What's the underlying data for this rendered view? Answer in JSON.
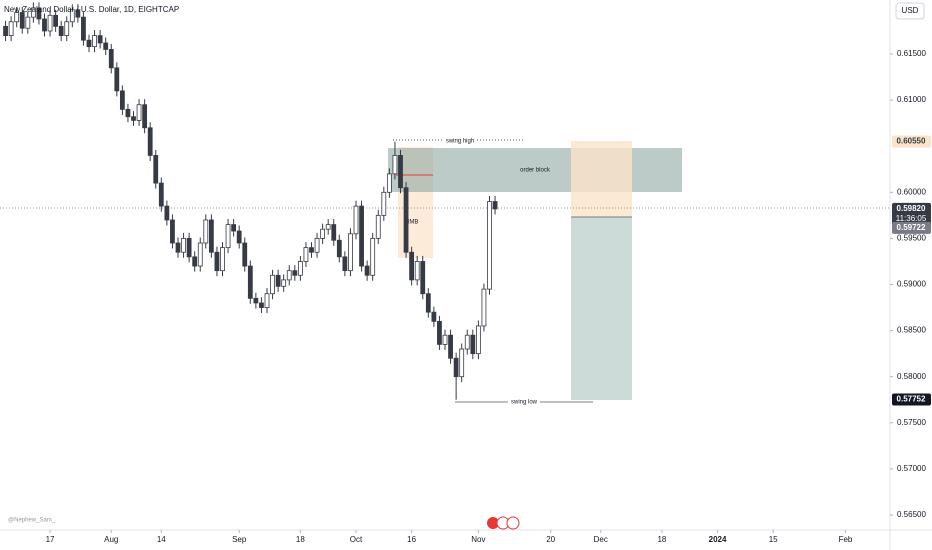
{
  "chart_data": {
    "type": "candlestick",
    "title": "New Zealand Dollar / U.S. Dollar, 1D, EIGHTCAP",
    "currency": "USD",
    "x": [
      -8,
      -7,
      -6,
      -5,
      -4,
      -3,
      -2,
      -1,
      0,
      1,
      2,
      3,
      4,
      5,
      6,
      7,
      8,
      9,
      10,
      11,
      12,
      13,
      14,
      15,
      16,
      17,
      18,
      19,
      20,
      21,
      22,
      23,
      24,
      25,
      26,
      27,
      28,
      29,
      30,
      31,
      32,
      33,
      34,
      35,
      36,
      37,
      38,
      39,
      40,
      41,
      42,
      43,
      44,
      45,
      46,
      47,
      48,
      49,
      50,
      51,
      52,
      53,
      54,
      55,
      56,
      57,
      58,
      59,
      60,
      61,
      62,
      63,
      64,
      65,
      66,
      67,
      68,
      69,
      70,
      71,
      72,
      73,
      74,
      75,
      76,
      77,
      78,
      79,
      80
    ],
    "open": [
      0.618,
      0.617,
      0.6185,
      0.6195,
      0.6178,
      0.619,
      0.62,
      0.6188,
      0.6175,
      0.6192,
      0.618,
      0.617,
      0.6185,
      0.6198,
      0.619,
      0.6165,
      0.6158,
      0.617,
      0.6162,
      0.6155,
      0.6135,
      0.611,
      0.609,
      0.6082,
      0.6078,
      0.6095,
      0.607,
      0.604,
      0.601,
      0.5985,
      0.597,
      0.5945,
      0.5935,
      0.595,
      0.593,
      0.592,
      0.5945,
      0.597,
      0.5935,
      0.5915,
      0.594,
      0.5965,
      0.5958,
      0.5945,
      0.592,
      0.5885,
      0.588,
      0.5875,
      0.589,
      0.591,
      0.5898,
      0.5905,
      0.5915,
      0.591,
      0.5925,
      0.594,
      0.5935,
      0.595,
      0.596,
      0.5965,
      0.5948,
      0.593,
      0.5915,
      0.5955,
      0.5985,
      0.592,
      0.591,
      0.595,
      0.5975,
      0.6,
      0.602,
      0.604,
      0.6005,
      0.5935,
      0.5905,
      0.5925,
      0.589,
      0.587,
      0.586,
      0.5835,
      0.5845,
      0.582,
      0.58,
      0.583,
      0.5845,
      0.5825,
      0.5855,
      0.5895,
      0.599
    ],
    "high": [
      0.6186,
      0.6191,
      0.6201,
      0.6201,
      0.6196,
      0.6206,
      0.6206,
      0.6194,
      0.6198,
      0.6198,
      0.6186,
      0.6191,
      0.6204,
      0.6204,
      0.6196,
      0.6171,
      0.6176,
      0.6176,
      0.6168,
      0.6161,
      0.6141,
      0.6116,
      0.6096,
      0.6088,
      0.6101,
      0.6101,
      0.6076,
      0.6046,
      0.6016,
      0.5991,
      0.5976,
      0.5951,
      0.5956,
      0.5956,
      0.5936,
      0.5951,
      0.5976,
      0.5976,
      0.5941,
      0.5946,
      0.5971,
      0.5971,
      0.5964,
      0.5951,
      0.5926,
      0.5891,
      0.5886,
      0.5896,
      0.5916,
      0.5916,
      0.5911,
      0.5921,
      0.5921,
      0.5931,
      0.5946,
      0.5946,
      0.5956,
      0.5966,
      0.5971,
      0.5971,
      0.5954,
      0.5936,
      0.5961,
      0.5991,
      0.5991,
      0.5926,
      0.5956,
      0.5981,
      0.6006,
      0.6026,
      0.6055,
      0.6046,
      0.6011,
      0.5941,
      0.5931,
      0.5931,
      0.5896,
      0.5876,
      0.5866,
      0.5851,
      0.5851,
      0.5826,
      0.5836,
      0.5851,
      0.5851,
      0.5861,
      0.5901,
      0.5996,
      0.5996
    ],
    "low": [
      0.6164,
      0.6164,
      0.6179,
      0.6172,
      0.6172,
      0.6184,
      0.6182,
      0.6169,
      0.6169,
      0.6174,
      0.6164,
      0.6164,
      0.6179,
      0.6184,
      0.6159,
      0.6152,
      0.6152,
      0.6156,
      0.6149,
      0.6129,
      0.6104,
      0.6084,
      0.6076,
      0.6072,
      0.6072,
      0.6064,
      0.6034,
      0.6004,
      0.5979,
      0.5964,
      0.5939,
      0.5929,
      0.5929,
      0.5924,
      0.5914,
      0.5914,
      0.5939,
      0.5929,
      0.5909,
      0.5909,
      0.5934,
      0.5952,
      0.5939,
      0.5914,
      0.5879,
      0.5874,
      0.5869,
      0.5869,
      0.5884,
      0.5892,
      0.5892,
      0.5899,
      0.5904,
      0.5904,
      0.5919,
      0.5929,
      0.5929,
      0.5944,
      0.5954,
      0.5942,
      0.5924,
      0.5909,
      0.5909,
      0.5949,
      0.5914,
      0.5904,
      0.5904,
      0.5944,
      0.5969,
      0.5994,
      0.6014,
      0.5999,
      0.5929,
      0.5899,
      0.5899,
      0.5884,
      0.5864,
      0.5854,
      0.5829,
      0.5829,
      0.5814,
      0.5775,
      0.5794,
      0.5824,
      0.5819,
      0.5819,
      0.5849,
      0.5889,
      0.5976
    ],
    "close": [
      0.617,
      0.6185,
      0.6195,
      0.6178,
      0.619,
      0.62,
      0.6188,
      0.6175,
      0.6192,
      0.618,
      0.617,
      0.6185,
      0.6198,
      0.619,
      0.6165,
      0.6158,
      0.617,
      0.6162,
      0.6155,
      0.6135,
      0.611,
      0.609,
      0.6082,
      0.6078,
      0.6095,
      0.607,
      0.604,
      0.601,
      0.5985,
      0.597,
      0.5945,
      0.5935,
      0.595,
      0.593,
      0.592,
      0.5945,
      0.597,
      0.5935,
      0.5915,
      0.594,
      0.5965,
      0.5958,
      0.5945,
      0.592,
      0.5885,
      0.588,
      0.5875,
      0.589,
      0.591,
      0.5898,
      0.5905,
      0.5915,
      0.591,
      0.5925,
      0.594,
      0.5935,
      0.595,
      0.596,
      0.5965,
      0.5948,
      0.593,
      0.5915,
      0.5955,
      0.5985,
      0.592,
      0.591,
      0.595,
      0.5975,
      0.6,
      0.602,
      0.604,
      0.6005,
      0.5935,
      0.5905,
      0.5925,
      0.589,
      0.587,
      0.586,
      0.5835,
      0.5845,
      0.582,
      0.58,
      0.583,
      0.5845,
      0.5825,
      0.5855,
      0.5895,
      0.599,
      0.5982
    ],
    "up_color": "#ffffff",
    "down_color": "#363a45",
    "edge_color": "#363a45",
    "xlim": [
      -9,
      151
    ],
    "xticks": [
      {
        "value": 0,
        "label": "17"
      },
      {
        "value": 11,
        "label": "Aug"
      },
      {
        "value": 20,
        "label": "14"
      },
      {
        "value": 34,
        "label": "Sep"
      },
      {
        "value": 45,
        "label": "18"
      },
      {
        "value": 55,
        "label": "Oct"
      },
      {
        "value": 65,
        "label": "16"
      },
      {
        "value": 77,
        "label": "Nov"
      },
      {
        "value": 90,
        "label": "20"
      },
      {
        "value": 99,
        "label": "Dec"
      },
      {
        "value": 110,
        "label": "18"
      },
      {
        "value": 120,
        "label": "2024"
      },
      {
        "value": 130,
        "label": "15"
      },
      {
        "value": 143,
        "label": "Feb"
      }
    ],
    "ylim": [
      0.56337,
      0.62086
    ],
    "yticks": [
      {
        "value": 0.565,
        "label": "0.56500"
      },
      {
        "value": 0.57,
        "label": "0.57000"
      },
      {
        "value": 0.575,
        "label": "0.57500"
      },
      {
        "value": 0.58,
        "label": "0.58000"
      },
      {
        "value": 0.585,
        "label": "0.58500"
      },
      {
        "value": 0.59,
        "label": "0.59000"
      },
      {
        "value": 0.595,
        "label": "0.59500"
      },
      {
        "value": 0.6,
        "label": "0.60000"
      },
      {
        "value": 0.61,
        "label": "0.61000"
      },
      {
        "value": 0.615,
        "label": "0.61500"
      }
    ],
    "price_labels": [
      {
        "value": 0.6055,
        "label": "0.60550",
        "color": "#fbe3c9",
        "text_color": "#363a45"
      },
      {
        "value": 0.5982,
        "label": "0.59820",
        "color": "#363a45",
        "text_color": "#ffffff"
      },
      {
        "value": 0.59722,
        "label": "0.59722",
        "color": "#787b86",
        "text_color": "#ffffff"
      },
      {
        "value": 0.57752,
        "label": "0.57752",
        "color": "#131722",
        "text_color": "#ffffff"
      }
    ],
    "countdown": "11:36:05",
    "annotations": {
      "swing_high": "swing high",
      "order_block": "order block",
      "imb": "IMB",
      "swing_low": "swing low"
    },
    "watermark": "@Nephew_Sam_"
  }
}
